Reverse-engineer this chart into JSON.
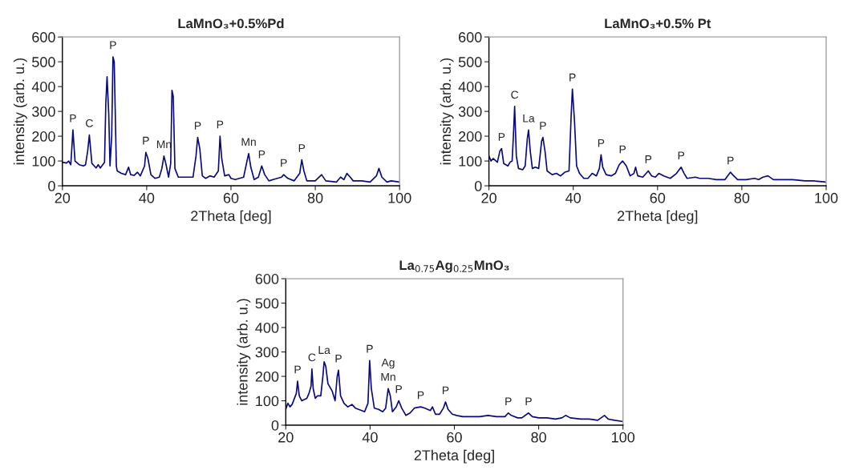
{
  "chart_data": [
    {
      "type": "line",
      "title": "LaMnO₃+0.5%Pd",
      "xlabel": "2Theta [deg]",
      "ylabel": "intensity (arb. u.)",
      "xlim": [
        20,
        100
      ],
      "ylim": [
        0,
        600
      ],
      "xticks": [
        20,
        40,
        60,
        80,
        100
      ],
      "yticks": [
        0,
        100,
        200,
        300,
        400,
        500,
        600
      ],
      "x": [
        20,
        21,
        21.5,
        22,
        22.5,
        23,
        24,
        25,
        25.5,
        26,
        26.4,
        27,
        28,
        28.5,
        29,
        30,
        30.3,
        30.6,
        31,
        31.3,
        31.7,
        32,
        32.3,
        32.8,
        33,
        34,
        35,
        35.7,
        36.2,
        37,
        37.8,
        38.5,
        39.5,
        39.8,
        40.3,
        41,
        42,
        43,
        43.6,
        44.1,
        44.6,
        45.2,
        45.7,
        46,
        46.3,
        46.7,
        47.5,
        49,
        50,
        51,
        51.7,
        52.1,
        52.6,
        53.2,
        54,
        55,
        56,
        57,
        57.4,
        57.8,
        58.5,
        59.5,
        60,
        61,
        62,
        63,
        63.8,
        64.2,
        64.7,
        65.5,
        66.5,
        67.3,
        68,
        69,
        70,
        71,
        72,
        72.5,
        73.5,
        75,
        76.3,
        76.8,
        77.3,
        78,
        80,
        81.5,
        82.5,
        85,
        86,
        86.8,
        87.5,
        88.3,
        89,
        91,
        93,
        94.5,
        95.1,
        95.8,
        97,
        98,
        100
      ],
      "series": [
        {
          "color": "#0a0a80",
          "values": [
            95,
            92,
            100,
            85,
            225,
            100,
            85,
            80,
            85,
            140,
            205,
            90,
            72,
            85,
            72,
            95,
            330,
            440,
            290,
            80,
            200,
            520,
            500,
            80,
            60,
            50,
            45,
            75,
            45,
            42,
            55,
            40,
            80,
            135,
            110,
            45,
            30,
            35,
            70,
            120,
            85,
            35,
            90,
            385,
            360,
            70,
            35,
            35,
            35,
            35,
            120,
            195,
            150,
            40,
            30,
            40,
            35,
            60,
            200,
            110,
            40,
            45,
            30,
            25,
            30,
            35,
            100,
            130,
            75,
            25,
            35,
            80,
            45,
            20,
            25,
            30,
            35,
            45,
            30,
            20,
            50,
            105,
            60,
            20,
            20,
            45,
            20,
            15,
            35,
            25,
            50,
            35,
            20,
            20,
            15,
            40,
            70,
            35,
            15,
            20,
            15
          ]
        }
      ],
      "annotations": [
        {
          "text": "P",
          "x": 22.5,
          "y": 225
        },
        {
          "text": "C",
          "x": 26.4,
          "y": 205
        },
        {
          "text": "P",
          "x": 32,
          "y": 520
        },
        {
          "text": "P",
          "x": 39.8,
          "y": 135
        },
        {
          "text": "Mn",
          "x": 44.1,
          "y": 120
        },
        {
          "text": "P",
          "x": 52.1,
          "y": 195
        },
        {
          "text": "P",
          "x": 57.4,
          "y": 200
        },
        {
          "text": "Mn",
          "x": 64.2,
          "y": 130
        },
        {
          "text": "P",
          "x": 67.3,
          "y": 80
        },
        {
          "text": "P",
          "x": 72.5,
          "y": 45
        },
        {
          "text": "P",
          "x": 76.8,
          "y": 105
        }
      ]
    },
    {
      "type": "line",
      "title": "LaMnO₃+0.5% Pt",
      "xlabel": "2Theta [deg]",
      "ylabel": "intensity (arb. u.)",
      "xlim": [
        20,
        100
      ],
      "ylim": [
        0,
        600
      ],
      "xticks": [
        20,
        40,
        60,
        80,
        100
      ],
      "yticks": [
        0,
        100,
        200,
        300,
        400,
        500,
        600
      ],
      "x": [
        20,
        20.5,
        21,
        22,
        22.6,
        23,
        23.5,
        24.5,
        25,
        25.5,
        25.8,
        26.1,
        26.5,
        27,
        28,
        28.6,
        29.1,
        29.4,
        29.8,
        30.3,
        31,
        31.8,
        32.5,
        32.8,
        33.3,
        33.8,
        35,
        36,
        37,
        38,
        39,
        39.5,
        39.8,
        40.3,
        40.8,
        41.5,
        42.5,
        43.5,
        44.5,
        45.5,
        46.2,
        46.6,
        47,
        47.8,
        49,
        50,
        50.9,
        51.7,
        52.6,
        53.5,
        54.4,
        54.8,
        55.3,
        56.5,
        57.8,
        58.6,
        59.5,
        60.3,
        61.5,
        63,
        64.5,
        65.6,
        66.3,
        67,
        69,
        70,
        72,
        74,
        76,
        77.3,
        77.8,
        79,
        81,
        83,
        84,
        85,
        86.2,
        87.5,
        90,
        92,
        95,
        97,
        100
      ],
      "series": [
        {
          "color": "#0a0a80",
          "values": [
            120,
            100,
            110,
            95,
            140,
            150,
            90,
            80,
            95,
            100,
            200,
            320,
            120,
            70,
            65,
            80,
            190,
            225,
            140,
            70,
            75,
            70,
            180,
            195,
            140,
            60,
            45,
            50,
            40,
            55,
            60,
            280,
            390,
            260,
            80,
            50,
            30,
            30,
            50,
            40,
            70,
            125,
            75,
            45,
            40,
            50,
            85,
            100,
            80,
            40,
            50,
            75,
            40,
            35,
            60,
            40,
            35,
            50,
            40,
            30,
            50,
            75,
            50,
            30,
            35,
            30,
            30,
            25,
            25,
            55,
            45,
            25,
            25,
            30,
            25,
            35,
            40,
            25,
            25,
            25,
            20,
            20,
            15
          ]
        }
      ],
      "annotations": [
        {
          "text": "P",
          "x": 23,
          "y": 150
        },
        {
          "text": "C",
          "x": 26.1,
          "y": 320
        },
        {
          "text": "La",
          "x": 29.4,
          "y": 225
        },
        {
          "text": "P",
          "x": 32.8,
          "y": 195
        },
        {
          "text": "P",
          "x": 39.8,
          "y": 390
        },
        {
          "text": "P",
          "x": 46.6,
          "y": 125
        },
        {
          "text": "P",
          "x": 51.7,
          "y": 100
        },
        {
          "text": "P",
          "x": 57.8,
          "y": 60
        },
        {
          "text": "P",
          "x": 65.6,
          "y": 75
        },
        {
          "text": "P",
          "x": 77.3,
          "y": 55
        }
      ]
    },
    {
      "type": "line",
      "title": "La$_{0.75}$Ag$_{0.25}$MnO₃",
      "xlabel": "2Theta [deg]",
      "ylabel": "intensity (arb. u.)",
      "xlim": [
        20,
        100
      ],
      "ylim": [
        0,
        600
      ],
      "xticks": [
        20,
        40,
        60,
        80,
        100
      ],
      "yticks": [
        0,
        100,
        200,
        300,
        400,
        500,
        600
      ],
      "x": [
        20,
        20.5,
        21,
        21.5,
        22.5,
        22.8,
        23.2,
        23.8,
        25,
        25.5,
        26,
        26.2,
        26.5,
        27,
        27.5,
        28.3,
        28.8,
        29.1,
        29.5,
        30,
        31,
        31.7,
        32.2,
        32.5,
        33,
        33.8,
        34.7,
        35.7,
        36.5,
        38,
        38.7,
        39.5,
        39.9,
        40.3,
        41,
        42,
        43,
        43.7,
        44.3,
        44.8,
        45.3,
        46.2,
        46.8,
        47.5,
        48.5,
        49.5,
        50.5,
        52,
        53,
        54.3,
        54.8,
        55.5,
        56.5,
        57.4,
        57.9,
        58.5,
        59.5,
        60.5,
        62,
        64,
        66,
        68,
        70,
        72,
        72.8,
        73.5,
        75,
        76,
        77.6,
        78.5,
        80,
        82,
        84,
        85.5,
        86.4,
        87.5,
        90,
        92,
        94,
        95.6,
        96.5,
        98,
        100
      ],
      "series": [
        {
          "color": "#0a0a80",
          "values": [
            65,
            90,
            75,
            85,
            130,
            180,
            120,
            100,
            110,
            130,
            160,
            230,
            150,
            110,
            120,
            120,
            200,
            260,
            240,
            170,
            140,
            100,
            200,
            225,
            120,
            90,
            75,
            85,
            70,
            60,
            55,
            90,
            265,
            150,
            70,
            65,
            55,
            70,
            150,
            120,
            55,
            75,
            100,
            70,
            40,
            50,
            70,
            75,
            70,
            60,
            75,
            45,
            45,
            70,
            95,
            65,
            45,
            40,
            35,
            35,
            35,
            40,
            35,
            35,
            50,
            40,
            30,
            30,
            50,
            35,
            30,
            30,
            25,
            30,
            40,
            30,
            25,
            25,
            20,
            40,
            25,
            20,
            15
          ]
        }
      ],
      "annotations": [
        {
          "text": "P",
          "x": 22.8,
          "y": 180
        },
        {
          "text": "C",
          "x": 26.2,
          "y": 230
        },
        {
          "text": "La",
          "x": 29.1,
          "y": 260
        },
        {
          "text": "P",
          "x": 32.5,
          "y": 225
        },
        {
          "text": "P",
          "x": 39.9,
          "y": 265
        },
        {
          "text": "Ag\nMn",
          "x": 44.3,
          "y": 150
        },
        {
          "text": "P",
          "x": 46.8,
          "y": 100
        },
        {
          "text": "P",
          "x": 52,
          "y": 75
        },
        {
          "text": "P",
          "x": 57.9,
          "y": 95
        },
        {
          "text": "P",
          "x": 72.8,
          "y": 50
        },
        {
          "text": "P",
          "x": 77.6,
          "y": 50
        }
      ]
    }
  ]
}
